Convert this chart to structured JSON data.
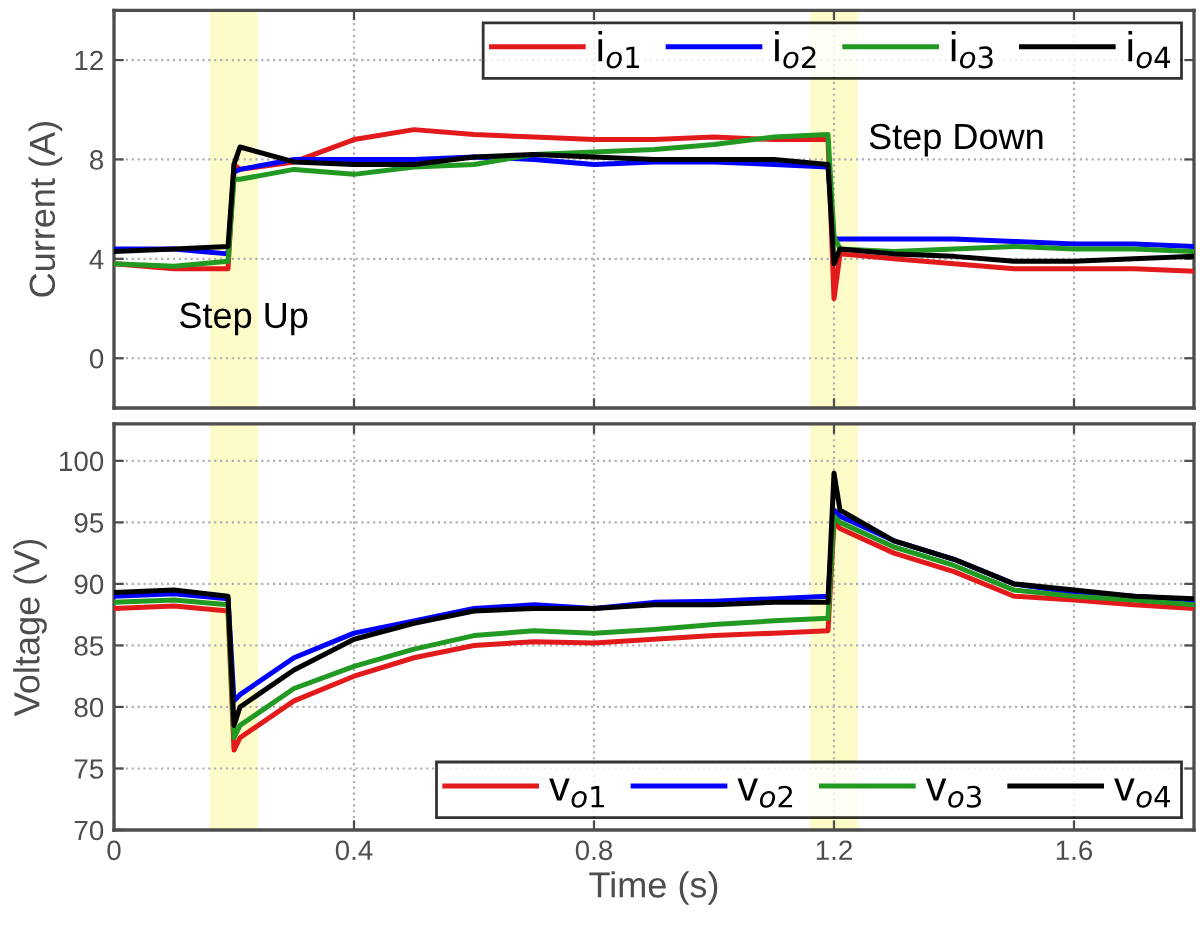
{
  "chart_data": [
    {
      "type": "line",
      "ylabel": "Current (A)",
      "x": [
        0,
        0.1,
        0.19,
        0.2,
        0.21,
        0.3,
        0.4,
        0.5,
        0.6,
        0.7,
        0.8,
        0.9,
        1.0,
        1.1,
        1.19,
        1.2,
        1.21,
        1.3,
        1.4,
        1.5,
        1.6,
        1.7,
        1.8
      ],
      "series": [
        {
          "name": "i$_{o1}$",
          "color": "#e31a1c",
          "values": [
            3.8,
            3.6,
            3.6,
            7.8,
            7.6,
            7.9,
            8.8,
            9.2,
            9.0,
            8.9,
            8.8,
            8.8,
            8.9,
            8.8,
            8.8,
            2.4,
            4.2,
            4.0,
            3.8,
            3.6,
            3.6,
            3.6,
            3.5
          ]
        },
        {
          "name": "i$_{o2}$",
          "color": "#0000ff",
          "values": [
            4.4,
            4.4,
            4.2,
            7.5,
            7.6,
            8.0,
            8.0,
            8.0,
            8.1,
            8.0,
            7.8,
            7.9,
            7.9,
            7.8,
            7.7,
            4.8,
            4.8,
            4.8,
            4.8,
            4.7,
            4.6,
            4.6,
            4.5
          ]
        },
        {
          "name": "i$_{o3}$",
          "color": "#229922",
          "values": [
            3.8,
            3.7,
            3.9,
            7.2,
            7.2,
            7.6,
            7.4,
            7.7,
            7.8,
            8.2,
            8.3,
            8.4,
            8.6,
            8.9,
            9.0,
            4.9,
            4.4,
            4.3,
            4.4,
            4.5,
            4.4,
            4.4,
            4.3
          ]
        },
        {
          "name": "i$_{o4}$",
          "color": "#000000",
          "values": [
            4.3,
            4.4,
            4.5,
            7.8,
            8.5,
            7.9,
            7.8,
            7.8,
            8.1,
            8.2,
            8.1,
            8.0,
            8.0,
            8.0,
            7.8,
            3.8,
            4.4,
            4.2,
            4.1,
            3.9,
            3.9,
            4.0,
            4.1
          ]
        }
      ],
      "xlim": [
        0,
        1.8
      ],
      "xticks": [
        0,
        0.4,
        0.8,
        1.2,
        1.6
      ],
      "ylim": [
        -2,
        14
      ],
      "yticks": [
        0,
        4,
        8,
        12
      ],
      "tick_labels": "y",
      "grid": true,
      "legend": "top right",
      "line_style": "solid",
      "bands": [
        {
          "axis": "x",
          "from": 0.16,
          "to": 0.24,
          "color": "#fdfcc8"
        },
        {
          "axis": "x",
          "from": 1.16,
          "to": 1.24,
          "color": "#fdfcc8"
        }
      ],
      "annotations": [
        "Step Up",
        "Step Down"
      ]
    },
    {
      "type": "line",
      "xlabel": "Time (s)",
      "ylabel": "Voltage (V)",
      "x": [
        0,
        0.1,
        0.19,
        0.2,
        0.21,
        0.3,
        0.4,
        0.5,
        0.6,
        0.7,
        0.8,
        0.9,
        1.0,
        1.1,
        1.19,
        1.2,
        1.21,
        1.3,
        1.4,
        1.5,
        1.6,
        1.7,
        1.8
      ],
      "series": [
        {
          "name": "v$_{o1}$",
          "color": "#e31a1c",
          "values": [
            88,
            88.2,
            87.8,
            76.5,
            77.5,
            80.5,
            82.5,
            84,
            85,
            85.3,
            85.2,
            85.5,
            85.8,
            86,
            86.2,
            95,
            94.5,
            92.5,
            91,
            89,
            88.7,
            88.3,
            88
          ]
        },
        {
          "name": "v$_{o2}$",
          "color": "#0000ff",
          "values": [
            89,
            89.2,
            88.8,
            80.5,
            81,
            84,
            86,
            87,
            88,
            88.3,
            88,
            88.5,
            88.6,
            88.8,
            89,
            96,
            95.5,
            93.5,
            92,
            90,
            89.3,
            89,
            88.7
          ]
        },
        {
          "name": "v$_{o3}$",
          "color": "#229922",
          "values": [
            88.5,
            88.7,
            88.3,
            77.5,
            78.5,
            81.5,
            83.3,
            84.7,
            85.8,
            86.2,
            86,
            86.3,
            86.7,
            87,
            87.2,
            95.5,
            95,
            93,
            91.5,
            89.5,
            89,
            88.7,
            88.3
          ]
        },
        {
          "name": "v$_{o4}$",
          "color": "#000000",
          "values": [
            89.3,
            89.5,
            89,
            78.5,
            80,
            83,
            85.5,
            86.8,
            87.8,
            88,
            88,
            88.3,
            88.3,
            88.5,
            88.5,
            99,
            96,
            93.5,
            92,
            90,
            89.5,
            89,
            88.8
          ]
        }
      ],
      "xlim": [
        0,
        1.8
      ],
      "xticks": [
        0,
        0.4,
        0.8,
        1.2,
        1.6
      ],
      "ylim": [
        70,
        103
      ],
      "yticks": [
        70,
        75,
        80,
        85,
        90,
        95,
        100
      ],
      "grid": true,
      "legend": "bottom right",
      "line_style": "solid",
      "bands": [
        {
          "axis": "x",
          "from": 0.16,
          "to": 0.24,
          "color": "#fdfcc8"
        },
        {
          "axis": "x",
          "from": 1.16,
          "to": 1.24,
          "color": "#fdfcc8"
        }
      ]
    }
  ]
}
